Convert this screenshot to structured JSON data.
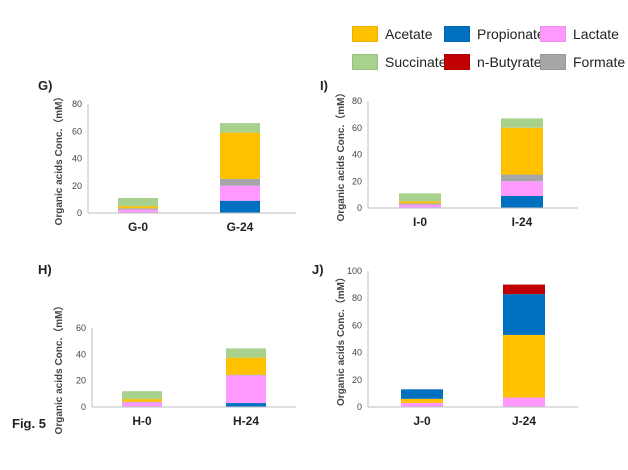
{
  "figure_label": "Fig. 5",
  "legend": [
    {
      "name": "Acetate",
      "color": "#ffc000"
    },
    {
      "name": "Propionate",
      "color": "#0070c0"
    },
    {
      "name": "Lactate",
      "color": "#ff99ff"
    },
    {
      "name": "Succinate",
      "color": "#a9d18e"
    },
    {
      "name": "n-Butyrate",
      "color": "#c00000"
    },
    {
      "name": "Formate",
      "color": "#a6a6a6"
    }
  ],
  "chart_data": [
    {
      "panel": "G)",
      "type": "bar",
      "stacked": true,
      "ylabel": "Organic acids Conc.（mM）",
      "ylim": [
        0,
        80
      ],
      "yticks": [
        "0",
        "20",
        "40",
        "60",
        "80"
      ],
      "categories": [
        "G-0",
        "G-24"
      ],
      "series": [
        {
          "name": "Propionate",
          "values": [
            0.5,
            9
          ]
        },
        {
          "name": "Lactate",
          "values": [
            2,
            11
          ]
        },
        {
          "name": "Formate",
          "values": [
            1,
            5
          ]
        },
        {
          "name": "Acetate",
          "values": [
            1.5,
            34
          ]
        },
        {
          "name": "n-Butyrate",
          "values": [
            0,
            0
          ]
        },
        {
          "name": "Succinate",
          "values": [
            6,
            7
          ]
        }
      ]
    },
    {
      "panel": "I)",
      "type": "bar",
      "stacked": true,
      "ylabel": "Organic acids Conc.（mM）",
      "ylim": [
        0,
        80
      ],
      "yticks": [
        "0",
        "20",
        "40",
        "60",
        "80"
      ],
      "categories": [
        "I-0",
        "I-24"
      ],
      "series": [
        {
          "name": "Propionate",
          "values": [
            0.5,
            9
          ]
        },
        {
          "name": "Lactate",
          "values": [
            2,
            11
          ]
        },
        {
          "name": "Formate",
          "values": [
            1,
            5
          ]
        },
        {
          "name": "Acetate",
          "values": [
            1.5,
            35
          ]
        },
        {
          "name": "n-Butyrate",
          "values": [
            0,
            0
          ]
        },
        {
          "name": "Succinate",
          "values": [
            6,
            7
          ]
        }
      ]
    },
    {
      "panel": "H)",
      "type": "bar",
      "stacked": true,
      "ylabel": "Organic acids Conc.（mM）",
      "ylim": [
        0,
        60
      ],
      "yticks": [
        "0",
        "20",
        "40",
        "60"
      ],
      "categories": [
        "H-0",
        "H-24"
      ],
      "series": [
        {
          "name": "Propionate",
          "values": [
            0.5,
            3
          ]
        },
        {
          "name": "Lactate",
          "values": [
            3,
            21
          ]
        },
        {
          "name": "Formate",
          "values": [
            0.5,
            0.5
          ]
        },
        {
          "name": "Acetate",
          "values": [
            2,
            13
          ]
        },
        {
          "name": "n-Butyrate",
          "values": [
            0,
            0
          ]
        },
        {
          "name": "Succinate",
          "values": [
            6,
            7
          ]
        }
      ]
    },
    {
      "panel": "J)",
      "type": "bar",
      "stacked": true,
      "ylabel": "Organic acids Conc.（mM）",
      "ylim": [
        0,
        100
      ],
      "yticks": [
        "0",
        "20",
        "40",
        "60",
        "80",
        "100"
      ],
      "categories": [
        "J-0",
        "J-24"
      ],
      "series": [
        {
          "name": "Lactate",
          "values": [
            3,
            7
          ]
        },
        {
          "name": "Acetate",
          "values": [
            3,
            46
          ]
        },
        {
          "name": "Propionate",
          "values": [
            7,
            30
          ]
        },
        {
          "name": "n-Butyrate",
          "values": [
            0,
            7
          ]
        },
        {
          "name": "Formate",
          "values": [
            0,
            0
          ]
        },
        {
          "name": "Succinate",
          "values": [
            0,
            0
          ]
        }
      ]
    }
  ]
}
